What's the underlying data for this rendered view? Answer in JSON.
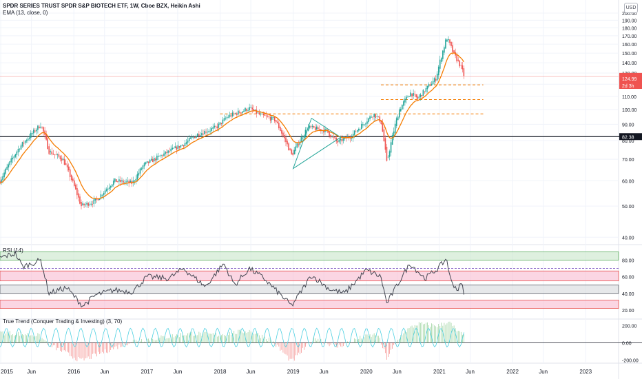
{
  "header": {
    "title": "SPDR SERIES TRUST SPDR S&P BIOTECH ETF, 1W, Cboe BZX, Heikin Ashi",
    "indicator": "EMA (13, close, 0)",
    "currency": "USD"
  },
  "rsi_panel": {
    "label": "RSI (14)"
  },
  "trend_panel": {
    "label": "True Trend (Conquer Trading & Investing) (3, 70)"
  },
  "colors": {
    "up": "#26a69a",
    "down": "#ef5350",
    "ema": "#f57c00",
    "level_line": "#131722",
    "dashed": "#f57c00",
    "triangle": "#26a69a",
    "rsi_line": "#434651",
    "green_zone": "#c8e6c9",
    "red_zone": "#f8bbd0",
    "gray_zone": "#d6d8dc",
    "price_tag_current": "#ef5350",
    "price_tag_level": "#131722"
  },
  "chart_data": [
    {
      "type": "candlestick",
      "name": "price",
      "x_ticks": [
        "2015",
        "Jun",
        "2016",
        "Jun",
        "2017",
        "Jun",
        "2018",
        "Jun",
        "2019",
        "Jun",
        "2020",
        "Jun",
        "2021",
        "Jun",
        "2022",
        "Jun",
        "2023"
      ],
      "x_tick_years": [
        2015.0,
        2015.42,
        2016.0,
        2016.42,
        2017.0,
        2017.42,
        2018.0,
        2018.42,
        2019.0,
        2019.42,
        2020.0,
        2020.42,
        2021.0,
        2021.42,
        2022.0,
        2022.42,
        2023.0
      ],
      "x_range": [
        2014.99,
        2023.45
      ],
      "y_ticks": [
        40,
        50,
        60,
        70,
        80,
        90,
        100,
        110,
        120,
        130,
        140,
        150,
        160,
        170,
        180,
        190,
        200
      ],
      "y_tick_labels": [
        "40.00",
        "50.00",
        "60.00",
        "70.00",
        "80.00",
        "90.00",
        "100.00",
        "110.00",
        "120.00",
        "130.00",
        "140.00",
        "150.00",
        "160.00",
        "170.00",
        "180.00",
        "190.00",
        "200.00"
      ],
      "ylim": [
        38.5,
        205
      ],
      "scale": "log",
      "keypoints": [
        [
          2014.99,
          60
        ],
        [
          2015.25,
          76
        ],
        [
          2015.55,
          90
        ],
        [
          2015.66,
          74
        ],
        [
          2015.85,
          70
        ],
        [
          2016.1,
          50
        ],
        [
          2016.3,
          52
        ],
        [
          2016.55,
          60
        ],
        [
          2016.8,
          59
        ],
        [
          2016.95,
          67
        ],
        [
          2017.2,
          72
        ],
        [
          2017.5,
          78
        ],
        [
          2017.7,
          84
        ],
        [
          2017.95,
          88
        ],
        [
          2018.1,
          95
        ],
        [
          2018.4,
          101
        ],
        [
          2018.55,
          96
        ],
        [
          2018.75,
          93
        ],
        [
          2018.98,
          72
        ],
        [
          2019.2,
          88
        ],
        [
          2019.45,
          86
        ],
        [
          2019.6,
          79
        ],
        [
          2019.8,
          83
        ],
        [
          2020.1,
          97
        ],
        [
          2020.2,
          92
        ],
        [
          2020.28,
          68
        ],
        [
          2020.45,
          100
        ],
        [
          2020.6,
          113
        ],
        [
          2020.7,
          108
        ],
        [
          2020.95,
          125
        ],
        [
          2021.1,
          168
        ],
        [
          2021.2,
          148
        ],
        [
          2021.28,
          138
        ],
        [
          2021.34,
          127
        ]
      ],
      "ema_label": "EMA (13, close, 0)",
      "current_price": "126.96",
      "ema_value": "124.99",
      "countdown": "2d 3h",
      "level_price": 82.38,
      "level_label": "82.38",
      "dashed_levels": [
        {
          "price": 119.5,
          "from_year": 2020.2,
          "to_year": 2021.6
        },
        {
          "price": 107.5,
          "from_year": 2020.2,
          "to_year": 2021.6
        },
        {
          "price": 97.0,
          "from_year": 2018.0,
          "to_year": 2021.6
        }
      ],
      "triangle": [
        [
          2019.0,
          65.5
        ],
        [
          2019.25,
          94
        ],
        [
          2019.65,
          82
        ]
      ]
    },
    {
      "type": "line",
      "name": "RSI (14)",
      "y_ticks": [
        20,
        40,
        60,
        80
      ],
      "y_tick_labels": [
        "20.00",
        "40.00",
        "60.00",
        "80.00"
      ],
      "ylim": [
        10,
        97
      ],
      "zones": [
        {
          "from": 80,
          "to": 90,
          "color": "green"
        },
        {
          "from": 55,
          "to": 67,
          "color": "red"
        },
        {
          "from": 40,
          "to": 50,
          "color": "gray"
        },
        {
          "from": 22,
          "to": 32,
          "color": "red"
        }
      ],
      "dotted_level": 70,
      "keypoints": [
        [
          2014.99,
          83
        ],
        [
          2015.2,
          88
        ],
        [
          2015.3,
          72
        ],
        [
          2015.55,
          80
        ],
        [
          2015.66,
          40
        ],
        [
          2015.9,
          47
        ],
        [
          2016.12,
          25
        ],
        [
          2016.3,
          38
        ],
        [
          2016.55,
          44
        ],
        [
          2016.8,
          42
        ],
        [
          2017.0,
          60
        ],
        [
          2017.3,
          58
        ],
        [
          2017.5,
          70
        ],
        [
          2017.8,
          48
        ],
        [
          2018.05,
          76
        ],
        [
          2018.2,
          50
        ],
        [
          2018.4,
          70
        ],
        [
          2018.6,
          58
        ],
        [
          2018.98,
          25
        ],
        [
          2019.25,
          62
        ],
        [
          2019.5,
          45
        ],
        [
          2019.7,
          40
        ],
        [
          2020.0,
          68
        ],
        [
          2020.2,
          60
        ],
        [
          2020.28,
          28
        ],
        [
          2020.5,
          62
        ],
        [
          2020.6,
          76
        ],
        [
          2020.8,
          58
        ],
        [
          2020.98,
          70
        ],
        [
          2021.1,
          82
        ],
        [
          2021.15,
          56
        ],
        [
          2021.25,
          44
        ],
        [
          2021.3,
          52
        ],
        [
          2021.34,
          40
        ]
      ]
    },
    {
      "type": "area",
      "name": "True Trend",
      "y_ticks": [
        -200,
        0,
        200
      ],
      "y_tick_labels": [
        "-200.00",
        "0.00",
        "200.00"
      ],
      "ylim": [
        -230,
        260
      ],
      "keypoints": [
        [
          2014.99,
          120
        ],
        [
          2015.5,
          90
        ],
        [
          2015.7,
          -40
        ],
        [
          2016.1,
          -210
        ],
        [
          2016.5,
          -80
        ],
        [
          2016.8,
          20
        ],
        [
          2017.2,
          60
        ],
        [
          2017.6,
          110
        ],
        [
          2017.95,
          90
        ],
        [
          2018.4,
          140
        ],
        [
          2018.7,
          30
        ],
        [
          2018.98,
          -220
        ],
        [
          2019.3,
          60
        ],
        [
          2019.6,
          -50
        ],
        [
          2019.9,
          50
        ],
        [
          2020.15,
          100
        ],
        [
          2020.28,
          -180
        ],
        [
          2020.5,
          120
        ],
        [
          2020.7,
          220
        ],
        [
          2021.0,
          200
        ],
        [
          2021.12,
          250
        ],
        [
          2021.25,
          130
        ],
        [
          2021.34,
          70
        ]
      ]
    }
  ]
}
